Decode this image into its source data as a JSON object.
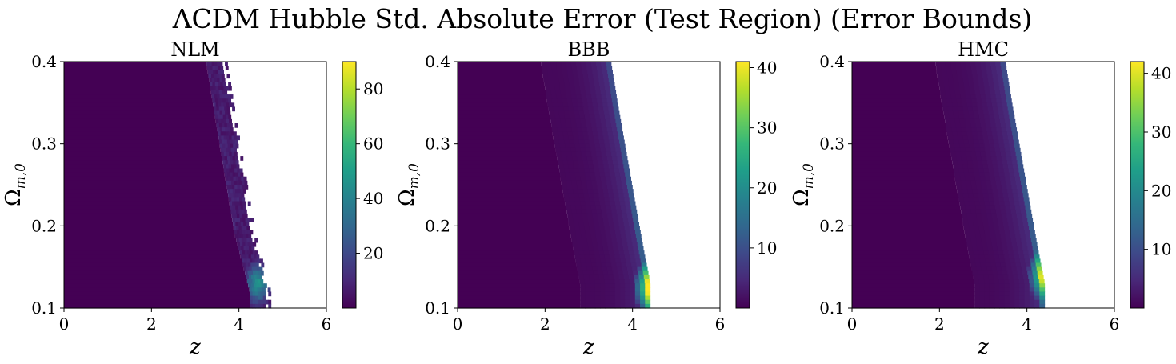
{
  "figure": {
    "title": "ΛCDM Hubble Std. Absolute Error (Test Region) (Error Bounds)"
  },
  "colors": {
    "background": "#ffffff",
    "axis": "#000000",
    "viridis": [
      "#440154",
      "#482878",
      "#3e4989",
      "#31688e",
      "#26828e",
      "#1f9e89",
      "#35b779",
      "#6ece58",
      "#b5de2b",
      "#fde725"
    ]
  },
  "chart_data": [
    {
      "type": "heatmap",
      "title": "NLM",
      "xlabel": "z",
      "ylabel": "Ω_{m,0}",
      "ylabel_parts": {
        "base": "Ω",
        "sub": "m,0"
      },
      "xlim": [
        0,
        6
      ],
      "ylim": [
        0.1,
        0.4
      ],
      "xticks": [
        "0",
        "2",
        "4",
        "6"
      ],
      "yticks": [
        "0.1",
        "0.2",
        "0.3",
        "0.4"
      ],
      "colorbar": {
        "min": 0,
        "max": 90,
        "ticks": [
          "20",
          "40",
          "60",
          "80"
        ],
        "tick_values": [
          20,
          40,
          60,
          80
        ]
      },
      "boundary": [
        [
          3.6,
          0.4
        ],
        [
          3.75,
          0.35
        ],
        [
          4.0,
          0.27
        ],
        [
          4.25,
          0.19
        ],
        [
          4.6,
          0.12
        ],
        [
          4.6,
          0.1
        ]
      ],
      "hotspot": {
        "z": 4.4,
        "omega": 0.13,
        "value": 45
      },
      "noisy_edge": true
    },
    {
      "type": "heatmap",
      "title": "BBB",
      "xlabel": "z",
      "ylabel": "Ω_{m,0}",
      "ylabel_parts": {
        "base": "Ω",
        "sub": "m,0"
      },
      "xlim": [
        0,
        6
      ],
      "ylim": [
        0.1,
        0.4
      ],
      "xticks": [
        "0",
        "2",
        "4",
        "6"
      ],
      "yticks": [
        "0.1",
        "0.2",
        "0.3",
        "0.4"
      ],
      "colorbar": {
        "min": 0,
        "max": 41,
        "ticks": [
          "10",
          "20",
          "30",
          "40"
        ],
        "tick_values": [
          10,
          20,
          30,
          40
        ]
      },
      "boundary": [
        [
          3.5,
          0.4
        ],
        [
          3.65,
          0.35
        ],
        [
          3.85,
          0.29
        ],
        [
          4.05,
          0.23
        ],
        [
          4.25,
          0.17
        ],
        [
          4.4,
          0.13
        ],
        [
          4.4,
          0.1
        ]
      ],
      "hotspot": {
        "z": 4.35,
        "omega": 0.125,
        "value": 38
      },
      "noisy_edge": false
    },
    {
      "type": "heatmap",
      "title": "HMC",
      "xlabel": "z",
      "ylabel": "Ω_{m,0}",
      "ylabel_parts": {
        "base": "Ω",
        "sub": "m,0"
      },
      "xlim": [
        0,
        6
      ],
      "ylim": [
        0.1,
        0.4
      ],
      "xticks": [
        "0",
        "2",
        "4",
        "6"
      ],
      "yticks": [
        "0.1",
        "0.2",
        "0.3",
        "0.4"
      ],
      "colorbar": {
        "min": 0,
        "max": 42,
        "ticks": [
          "10",
          "20",
          "30",
          "40"
        ],
        "tick_values": [
          10,
          20,
          30,
          40
        ]
      },
      "boundary": [
        [
          3.5,
          0.4
        ],
        [
          3.65,
          0.35
        ],
        [
          3.85,
          0.29
        ],
        [
          4.05,
          0.23
        ],
        [
          4.25,
          0.17
        ],
        [
          4.4,
          0.13
        ],
        [
          4.4,
          0.1
        ]
      ],
      "hotspot": {
        "z": 4.35,
        "omega": 0.14,
        "value": 36
      },
      "noisy_edge": false
    }
  ]
}
